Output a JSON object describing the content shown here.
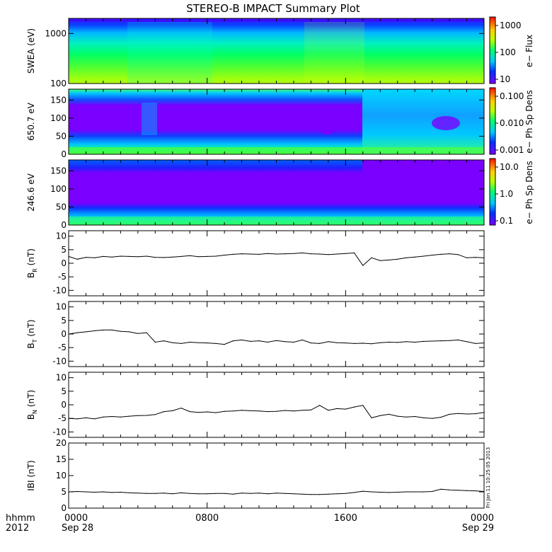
{
  "title": "STEREO-B IMPACT Summary Plot",
  "footer": {
    "left_label_top": "hhmm",
    "left_label_bottom": "2012",
    "x_ticks": [
      "0000",
      "0800",
      "1600",
      "0000"
    ],
    "x_dates": [
      "Sep 28",
      "Sep 29"
    ]
  },
  "side_stamp": "Fri Jan 11 10:25:05 2013",
  "chart_data": [
    {
      "type": "heatmap",
      "ylabel": "SWEA (eV)",
      "yscale": "log",
      "ylim": [
        100,
        2000
      ],
      "yticks": [
        "100",
        "1000"
      ],
      "colorbar": {
        "label": "e− Flux",
        "ticks": [
          "10",
          "100",
          "1000"
        ]
      },
      "description_note": "Electron flux vs energy, high near 100 eV, low above ~1500 eV"
    },
    {
      "type": "heatmap",
      "ylabel": "650.7 eV",
      "ylim": [
        0,
        180
      ],
      "yticks": [
        "0",
        "50",
        "100",
        "150"
      ],
      "colorbar": {
        "label": "e− Ph Sp Dens",
        "ticks": [
          "0.001",
          "0.010",
          "0.100"
        ]
      }
    },
    {
      "type": "heatmap",
      "ylabel": "246.6 eV",
      "ylim": [
        0,
        180
      ],
      "yticks": [
        "0",
        "50",
        "100",
        "150"
      ],
      "colorbar": {
        "label": "e− Ph Sp Dens",
        "ticks": [
          "0.1",
          "1.0",
          "10.0"
        ]
      }
    },
    {
      "type": "line",
      "ylabel": "B_R (nT)",
      "ylabel_main": "B",
      "ylabel_sub": "R",
      "ylabel_unit": "(nT)",
      "ylim": [
        -12,
        12
      ],
      "yticks": [
        "-10",
        "-5",
        "0",
        "5",
        "10"
      ],
      "x": [
        0,
        0.5,
        1,
        1.5,
        2,
        2.5,
        3,
        3.5,
        4,
        4.5,
        5,
        5.5,
        6,
        6.5,
        7,
        7.5,
        8,
        8.5,
        9,
        9.5,
        10,
        10.5,
        11,
        11.5,
        12,
        12.5,
        13,
        13.5,
        14,
        14.5,
        15,
        15.5,
        16,
        16.5,
        17,
        17.5,
        18,
        18.5,
        19,
        19.5,
        20,
        20.5,
        21,
        21.5,
        22,
        22.5,
        23,
        23.5,
        24
      ],
      "values": [
        2.5,
        1.5,
        2.2,
        2,
        2.5,
        2.3,
        2.6,
        2.5,
        2.4,
        2.6,
        2.2,
        2.1,
        2.3,
        2.5,
        2.8,
        2.4,
        2.5,
        2.6,
        3,
        3.3,
        3.5,
        3.4,
        3.3,
        3.6,
        3.4,
        3.5,
        3.6,
        3.8,
        3.5,
        3.4,
        3.2,
        3.4,
        3.6,
        3.8,
        -0.8,
        2,
        1,
        1.2,
        1.5,
        2,
        2.3,
        2.6,
        3,
        3.3,
        3.5,
        3.2,
        2,
        2.2,
        2
      ]
    },
    {
      "type": "line",
      "ylabel": "B_T (nT)",
      "ylabel_main": "B",
      "ylabel_sub": "T",
      "ylabel_unit": "(nT)",
      "ylim": [
        -12,
        12
      ],
      "yticks": [
        "-10",
        "-5",
        "0",
        "5",
        "10"
      ],
      "x": [
        0,
        0.5,
        1,
        1.5,
        2,
        2.5,
        3,
        3.5,
        4,
        4.5,
        5,
        5.5,
        6,
        6.5,
        7,
        7.5,
        8,
        8.5,
        9,
        9.5,
        10,
        10.5,
        11,
        11.5,
        12,
        12.5,
        13,
        13.5,
        14,
        14.5,
        15,
        15.5,
        16,
        16.5,
        17,
        17.5,
        18,
        18.5,
        19,
        19.5,
        20,
        20.5,
        21,
        21.5,
        22,
        22.5,
        23,
        23.5,
        24
      ],
      "values": [
        0,
        0.5,
        0.8,
        1.2,
        1.5,
        1.5,
        1,
        0.8,
        0.2,
        0.5,
        -3,
        -2.5,
        -3.2,
        -3.5,
        -3,
        -3.2,
        -3.3,
        -3.5,
        -3.8,
        -2.5,
        -2.2,
        -2.7,
        -2.5,
        -3,
        -2.4,
        -2.8,
        -3,
        -2.2,
        -3.3,
        -3.5,
        -2.8,
        -3.2,
        -3.3,
        -3.5,
        -3.4,
        -3.6,
        -3.2,
        -3,
        -3.1,
        -2.8,
        -3,
        -2.7,
        -2.6,
        -2.5,
        -2.4,
        -2.2,
        -2.8,
        -3.5,
        -3.3
      ]
    },
    {
      "type": "line",
      "ylabel": "B_N (nT)",
      "ylabel_main": "B",
      "ylabel_sub": "N",
      "ylabel_unit": "(nT)",
      "ylim": [
        -12,
        12
      ],
      "yticks": [
        "-10",
        "-5",
        "0",
        "5",
        "10"
      ],
      "x": [
        0,
        0.5,
        1,
        1.5,
        2,
        2.5,
        3,
        3.5,
        4,
        4.5,
        5,
        5.5,
        6,
        6.5,
        7,
        7.5,
        8,
        8.5,
        9,
        9.5,
        10,
        10.5,
        11,
        11.5,
        12,
        12.5,
        13,
        13.5,
        14,
        14.5,
        15,
        15.5,
        16,
        16.5,
        17,
        17.5,
        18,
        18.5,
        19,
        19.5,
        20,
        20.5,
        21,
        21.5,
        22,
        22.5,
        23,
        23.5,
        24
      ],
      "values": [
        -5,
        -5.2,
        -4.8,
        -5.2,
        -4.5,
        -4.3,
        -4.5,
        -4.2,
        -4,
        -3.9,
        -3.6,
        -2.5,
        -2.2,
        -1.2,
        -2.5,
        -2.8,
        -2.6,
        -2.9,
        -2.4,
        -2.3,
        -2,
        -2.2,
        -2.3,
        -2.5,
        -2.4,
        -2.1,
        -2.3,
        -2,
        -1.9,
        -0.2,
        -2,
        -1.4,
        -1.6,
        -0.8,
        -0.2,
        -4.8,
        -4,
        -3.5,
        -4.2,
        -4.5,
        -4.3,
        -4.8,
        -5,
        -4.6,
        -3.5,
        -3.2,
        -3.4,
        -3.3,
        -2.8
      ]
    },
    {
      "type": "line",
      "ylabel": "|B| (nT)",
      "ylabel_main": "IBI",
      "ylabel_sub": "",
      "ylabel_unit": "(nT)",
      "ylim": [
        0,
        20
      ],
      "yticks": [
        "0",
        "5",
        "10",
        "15",
        "20"
      ],
      "x": [
        0,
        0.5,
        1,
        1.5,
        2,
        2.5,
        3,
        3.5,
        4,
        4.5,
        5,
        5.5,
        6,
        6.5,
        7,
        7.5,
        8,
        8.5,
        9,
        9.5,
        10,
        10.5,
        11,
        11.5,
        12,
        12.5,
        13,
        13.5,
        14,
        14.5,
        15,
        15.5,
        16,
        16.5,
        17,
        17.5,
        18,
        18.5,
        19,
        19.5,
        20,
        20.5,
        21,
        21.5,
        22,
        22.5,
        23,
        23.5,
        24
      ],
      "values": [
        5,
        5.1,
        5,
        4.9,
        5,
        4.8,
        4.9,
        4.7,
        4.6,
        4.5,
        4.5,
        4.6,
        4.4,
        4.7,
        4.5,
        4.4,
        4.4,
        4.5,
        4.5,
        4.3,
        4.6,
        4.5,
        4.6,
        4.4,
        4.6,
        4.5,
        4.4,
        4.3,
        4.2,
        4.2,
        4.3,
        4.4,
        4.5,
        4.8,
        5.2,
        5,
        4.9,
        4.8,
        4.9,
        5,
        5,
        5,
        5.1,
        5.8,
        5.6,
        5.5,
        5.4,
        5.3,
        5.1
      ]
    }
  ]
}
